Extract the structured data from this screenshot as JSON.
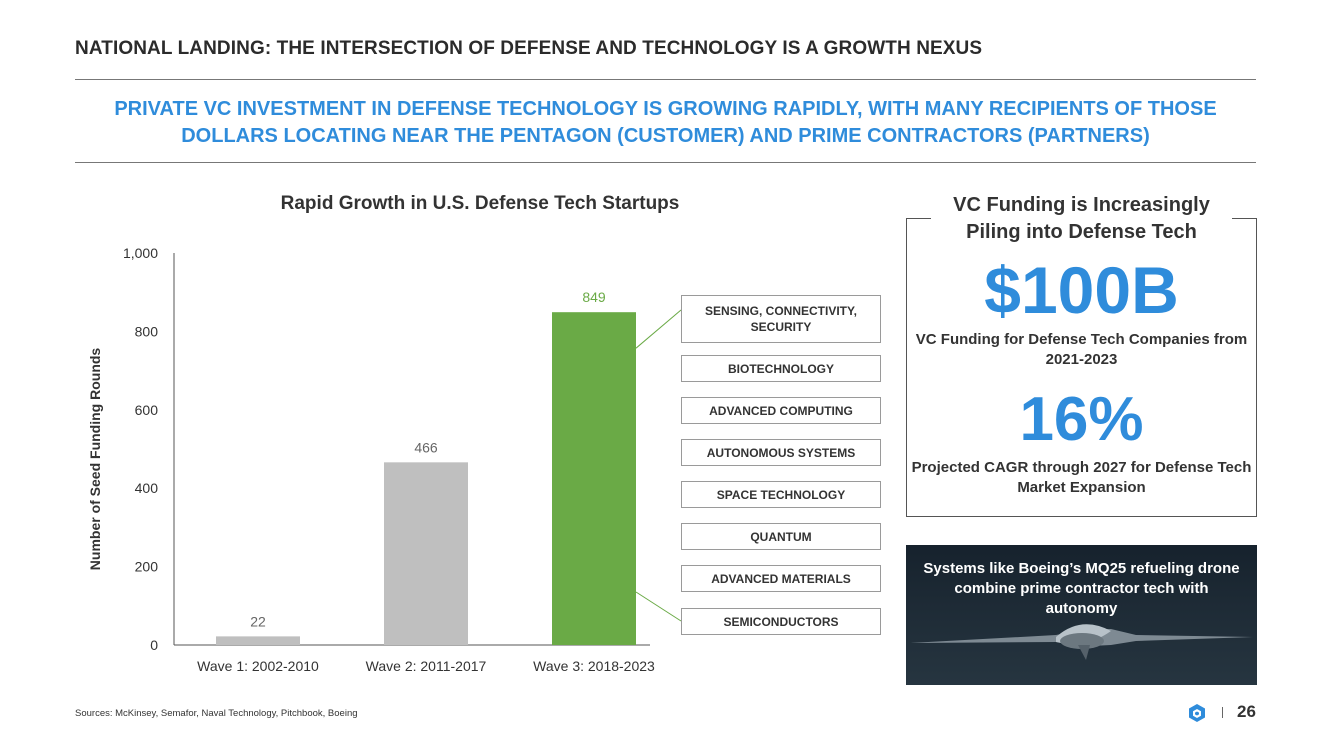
{
  "header": {
    "title": "NATIONAL LANDING: THE INTERSECTION OF DEFENSE AND TECHNOLOGY IS A GROWTH NEXUS",
    "subtitle_line1": "PRIVATE VC INVESTMENT IN DEFENSE TECHNOLOGY IS GROWING RAPIDLY, WITH MANY RECIPIENTS OF THOSE",
    "subtitle_line2": "DOLLARS LOCATING NEAR THE PENTAGON (CUSTOMER) AND PRIME CONTRACTORS (PARTNERS)"
  },
  "chart_data": {
    "type": "bar",
    "title": "Rapid Growth in U.S. Defense Tech Startups",
    "categories": [
      "Wave 1: 2002-2010",
      "Wave 2: 2011-2017",
      "Wave 3: 2018-2023"
    ],
    "values": [
      22,
      466,
      849
    ],
    "value_labels": [
      "22",
      "466",
      "849"
    ],
    "colors": [
      "#bfbfbf",
      "#bfbfbf",
      "#6aaa46"
    ],
    "label_colors": [
      "#666666",
      "#666666",
      "#6aaa46"
    ],
    "xlabel": "",
    "ylabel": "Number of Seed Funding Rounds",
    "ylim": [
      0,
      1000
    ],
    "yticks": [
      0,
      200,
      400,
      600,
      800,
      1000
    ],
    "ytick_labels": [
      "0",
      "200",
      "400",
      "600",
      "800",
      "1,000"
    ],
    "grid": false
  },
  "breakdown": {
    "items": [
      "SENSING, CONNECTIVITY, SECURITY",
      "BIOTECHNOLOGY",
      "ADVANCED COMPUTING",
      "AUTONOMOUS SYSTEMS",
      "SPACE TECHNOLOGY",
      "QUANTUM",
      "ADVANCED MATERIALS",
      "SEMICONDUCTORS"
    ]
  },
  "vc_panel": {
    "title": "VC Funding is Increasingly Piling into Defense Tech",
    "stat1_value": "$100B",
    "stat1_label": "VC Funding for Defense Tech Companies from 2021-2023",
    "stat2_value": "16%",
    "stat2_label": "Projected CAGR through 2027 for Defense Tech Market Expansion"
  },
  "photo": {
    "caption": "Systems like Boeing’s MQ25 refueling drone combine prime contractor tech with autonomy"
  },
  "footer": {
    "sources": "Sources: McKinsey, Semafor, Naval Technology, Pitchbook, Boeing",
    "page_number": "26"
  },
  "colors": {
    "accent_blue": "#2f8cdb",
    "bar_green": "#6aaa46",
    "bar_gray": "#bfbfbf"
  }
}
